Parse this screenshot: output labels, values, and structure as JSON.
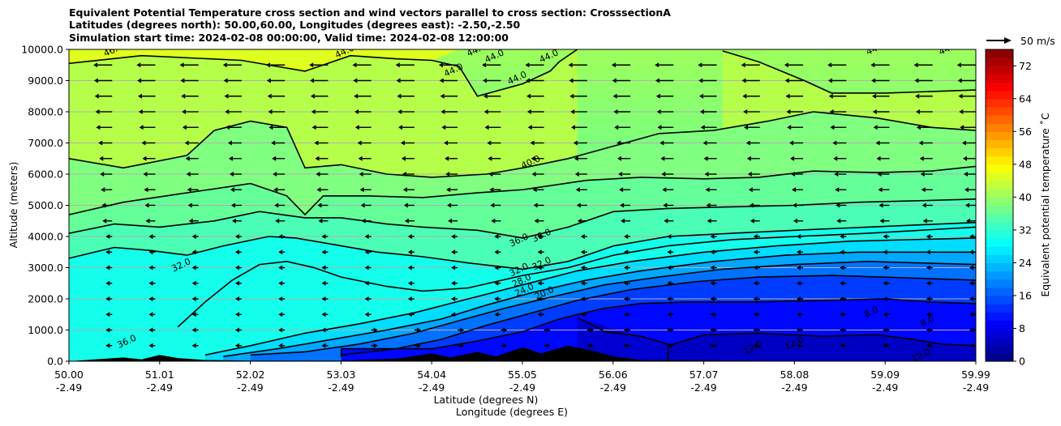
{
  "chart_data": {
    "type": "heatmap",
    "title_lines": [
      "Equivalent Potential Temperature cross section and wind vectors parallel to cross section: CrosssectionA",
      "Latitudes (degrees north): 50.00,60.00, Longitudes (degrees east): -2.50,-2.50",
      "Simulation start time: 2024-02-08 00:00:00, Valid time: 2024-02-08 12:00:00"
    ],
    "ylabel": "Altitude (meters)",
    "xlabel_lines": [
      "Latitude (degrees N)",
      "Longitude (degrees E)"
    ],
    "xlim": [
      50.0,
      59.99
    ],
    "ylim": [
      0,
      10000
    ],
    "x_ticks": [
      {
        "lat": "50.00",
        "lon": "-2.49"
      },
      {
        "lat": "51.01",
        "lon": "-2.49"
      },
      {
        "lat": "52.02",
        "lon": "-2.49"
      },
      {
        "lat": "53.03",
        "lon": "-2.49"
      },
      {
        "lat": "54.04",
        "lon": "-2.49"
      },
      {
        "lat": "55.05",
        "lon": "-2.49"
      },
      {
        "lat": "56.06",
        "lon": "-2.49"
      },
      {
        "lat": "57.07",
        "lon": "-2.49"
      },
      {
        "lat": "58.08",
        "lon": "-2.49"
      },
      {
        "lat": "59.09",
        "lon": "-2.49"
      },
      {
        "lat": "59.99",
        "lon": "-2.49"
      }
    ],
    "y_ticks": [
      "0.0",
      "1000.0",
      "2000.0",
      "3000.0",
      "4000.0",
      "5000.0",
      "6000.0",
      "7000.0",
      "8000.0",
      "9000.0",
      "10000.0"
    ],
    "y_tick_values": [
      0,
      1000,
      2000,
      3000,
      4000,
      5000,
      6000,
      7000,
      8000,
      9000,
      10000
    ],
    "grid": "horizontal",
    "colorbar": {
      "label": "Equivalent potential temperature ˚C",
      "range": [
        0,
        76
      ],
      "ticks": [
        "0",
        "8",
        "16",
        "24",
        "32",
        "40",
        "48",
        "56",
        "64",
        "72"
      ],
      "tick_values": [
        0,
        8,
        16,
        24,
        32,
        40,
        48,
        56,
        64,
        72
      ],
      "colormap": "jet"
    },
    "quiver_key": {
      "label": "50 m/s"
    },
    "contour_labels": [
      {
        "text": "46.0",
        "lat": 50.5,
        "alt": 9900
      },
      {
        "text": "44.0",
        "lat": 53.05,
        "alt": 9850
      },
      {
        "text": "44.0",
        "lat": 54.25,
        "alt": 9250
      },
      {
        "text": "44.0",
        "lat": 54.5,
        "alt": 9900
      },
      {
        "text": "44.0",
        "lat": 54.7,
        "alt": 9700
      },
      {
        "text": "44.0",
        "lat": 54.95,
        "alt": 9000
      },
      {
        "text": "44.0",
        "lat": 55.3,
        "alt": 9700
      },
      {
        "text": "44.0",
        "lat": 58.9,
        "alt": 9950
      },
      {
        "text": "44.0",
        "lat": 59.7,
        "alt": 9950
      },
      {
        "text": "40.0",
        "lat": 55.1,
        "alt": 6300
      },
      {
        "text": "36.0",
        "lat": 54.97,
        "alt": 3800
      },
      {
        "text": "36.0",
        "lat": 55.22,
        "alt": 3950
      },
      {
        "text": "32.0",
        "lat": 54.97,
        "alt": 2850
      },
      {
        "text": "32.0",
        "lat": 55.22,
        "alt": 3050
      },
      {
        "text": "28.0",
        "lat": 55.0,
        "alt": 2500
      },
      {
        "text": "24.0",
        "lat": 55.03,
        "alt": 2200
      },
      {
        "text": "20.0",
        "lat": 55.25,
        "alt": 2100
      },
      {
        "text": "32.0",
        "lat": 51.25,
        "alt": 3000
      },
      {
        "text": "36.0",
        "lat": 50.65,
        "alt": 550
      },
      {
        "text": "8.0",
        "lat": 58.85,
        "alt": 1500
      },
      {
        "text": "8.0",
        "lat": 59.47,
        "alt": 1200
      },
      {
        "text": "12.0",
        "lat": 57.55,
        "alt": 350
      },
      {
        "text": "12.0",
        "lat": 58.0,
        "alt": 500
      },
      {
        "text": "12.0",
        "lat": 59.4,
        "alt": 100
      }
    ],
    "contour_levels": [
      {
        "level": 44,
        "points": [
          [
            50.0,
            9550
          ],
          [
            50.8,
            9800
          ],
          [
            51.9,
            9650
          ],
          [
            52.6,
            9300
          ],
          [
            53.1,
            9800
          ],
          [
            53.6,
            9700
          ],
          [
            54.0,
            9650
          ],
          [
            54.3,
            9450
          ],
          [
            54.5,
            8500
          ],
          [
            54.75,
            8700
          ],
          [
            55.0,
            8900
          ],
          [
            55.3,
            9300
          ],
          [
            55.4,
            9600
          ],
          [
            55.6,
            10000
          ]
        ]
      },
      {
        "level": 44,
        "points": [
          [
            57.2,
            9950
          ],
          [
            57.6,
            9600
          ],
          [
            58.1,
            9000
          ],
          [
            58.4,
            8600
          ],
          [
            59.0,
            8600
          ],
          [
            59.99,
            8700
          ]
        ]
      },
      {
        "level": 40,
        "points": [
          [
            50.0,
            6500
          ],
          [
            50.6,
            6200
          ],
          [
            51.3,
            6600
          ],
          [
            51.6,
            7400
          ],
          [
            52.0,
            7700
          ],
          [
            52.4,
            7500
          ],
          [
            52.6,
            6200
          ],
          [
            53.0,
            6300
          ],
          [
            53.5,
            6000
          ],
          [
            54.0,
            5900
          ],
          [
            54.6,
            6000
          ],
          [
            55.0,
            6200
          ],
          [
            55.5,
            6500
          ],
          [
            56.0,
            6900
          ],
          [
            56.5,
            7300
          ],
          [
            57.1,
            7400
          ],
          [
            57.7,
            7700
          ],
          [
            58.2,
            8000
          ],
          [
            58.9,
            7800
          ],
          [
            59.5,
            7500
          ],
          [
            59.99,
            7400
          ]
        ]
      },
      {
        "level": 38,
        "points": [
          [
            50.0,
            4700
          ],
          [
            50.6,
            5100
          ],
          [
            51.3,
            5400
          ],
          [
            52.0,
            5700
          ],
          [
            52.4,
            5300
          ],
          [
            52.6,
            4700
          ],
          [
            52.8,
            5300
          ],
          [
            53.3,
            5300
          ],
          [
            53.9,
            5250
          ],
          [
            54.5,
            5400
          ],
          [
            55.0,
            5500
          ],
          [
            55.7,
            5800
          ],
          [
            56.3,
            5900
          ],
          [
            57.0,
            5850
          ],
          [
            57.6,
            5900
          ],
          [
            58.2,
            6100
          ],
          [
            58.9,
            6050
          ],
          [
            59.5,
            6100
          ],
          [
            59.99,
            6250
          ]
        ]
      },
      {
        "level": 36,
        "points": [
          [
            50.0,
            4100
          ],
          [
            50.5,
            4400
          ],
          [
            51.0,
            4300
          ],
          [
            51.6,
            4500
          ],
          [
            52.1,
            4800
          ],
          [
            52.6,
            4600
          ],
          [
            53.0,
            4600
          ],
          [
            53.5,
            4400
          ],
          [
            53.9,
            4300
          ],
          [
            54.5,
            4200
          ],
          [
            55.0,
            3950
          ],
          [
            55.5,
            4300
          ],
          [
            56.0,
            4800
          ],
          [
            56.6,
            4900
          ],
          [
            57.3,
            4950
          ],
          [
            58.0,
            5000
          ],
          [
            58.7,
            5100
          ],
          [
            59.4,
            5150
          ],
          [
            59.99,
            5200
          ]
        ]
      },
      {
        "level": 32,
        "points": [
          [
            50.0,
            3300
          ],
          [
            50.5,
            3650
          ],
          [
            50.9,
            3550
          ],
          [
            51.3,
            3400
          ],
          [
            51.7,
            3700
          ],
          [
            52.2,
            4000
          ],
          [
            52.5,
            3950
          ],
          [
            53.0,
            3700
          ],
          [
            53.4,
            3500
          ],
          [
            53.9,
            3350
          ],
          [
            54.4,
            3150
          ],
          [
            55.0,
            2950
          ],
          [
            55.5,
            3200
          ],
          [
            56.0,
            3700
          ],
          [
            56.6,
            4000
          ],
          [
            57.3,
            4100
          ],
          [
            58.0,
            4200
          ],
          [
            58.8,
            4300
          ],
          [
            59.99,
            4450
          ]
        ]
      },
      {
        "level": 32,
        "points": [
          [
            51.2,
            1100
          ],
          [
            51.5,
            1900
          ],
          [
            51.8,
            2600
          ],
          [
            52.1,
            3100
          ],
          [
            52.4,
            3200
          ],
          [
            52.7,
            3000
          ],
          [
            53.0,
            2700
          ],
          [
            53.5,
            2400
          ],
          [
            53.9,
            2250
          ],
          [
            54.4,
            2350
          ],
          [
            55.0,
            2750
          ],
          [
            55.5,
            3000
          ],
          [
            56.0,
            3400
          ],
          [
            56.6,
            3700
          ],
          [
            57.3,
            3900
          ],
          [
            58.0,
            4000
          ],
          [
            58.8,
            4100
          ],
          [
            59.99,
            4300
          ]
        ]
      },
      {
        "level": 28,
        "points": [
          [
            51.5,
            200
          ],
          [
            52.0,
            500
          ],
          [
            52.6,
            900
          ],
          [
            53.2,
            1200
          ],
          [
            53.8,
            1550
          ],
          [
            54.4,
            2000
          ],
          [
            55.0,
            2450
          ],
          [
            55.6,
            2900
          ],
          [
            56.2,
            3200
          ],
          [
            57.0,
            3500
          ],
          [
            57.8,
            3700
          ],
          [
            58.6,
            3850
          ],
          [
            59.99,
            3950
          ]
        ]
      },
      {
        "level": 24,
        "points": [
          [
            51.7,
            150
          ],
          [
            52.3,
            400
          ],
          [
            52.9,
            700
          ],
          [
            53.5,
            1000
          ],
          [
            54.1,
            1350
          ],
          [
            54.6,
            1800
          ],
          [
            55.1,
            2200
          ],
          [
            55.7,
            2600
          ],
          [
            56.3,
            2900
          ],
          [
            57.1,
            3200
          ],
          [
            57.9,
            3400
          ],
          [
            58.7,
            3500
          ],
          [
            59.99,
            3500
          ]
        ]
      },
      {
        "level": 20,
        "points": [
          [
            52.0,
            200
          ],
          [
            52.6,
            300
          ],
          [
            53.2,
            550
          ],
          [
            53.8,
            900
          ],
          [
            54.3,
            1300
          ],
          [
            54.8,
            1700
          ],
          [
            55.3,
            2050
          ],
          [
            55.9,
            2450
          ],
          [
            56.5,
            2700
          ],
          [
            57.2,
            2950
          ],
          [
            58.0,
            3100
          ],
          [
            58.8,
            3200
          ],
          [
            59.99,
            3100
          ]
        ]
      },
      {
        "level": 16,
        "points": [
          [
            53.0,
            200
          ],
          [
            53.6,
            400
          ],
          [
            54.1,
            700
          ],
          [
            54.6,
            1150
          ],
          [
            55.1,
            1550
          ],
          [
            55.6,
            1950
          ],
          [
            56.2,
            2300
          ],
          [
            56.9,
            2550
          ],
          [
            57.6,
            2700
          ],
          [
            58.4,
            2750
          ],
          [
            59.99,
            2600
          ]
        ]
      },
      {
        "level": 12,
        "points": [
          [
            53.0,
            120
          ],
          [
            53.0,
            400
          ],
          [
            54.0,
            400
          ],
          [
            54.5,
            650
          ],
          [
            55.0,
            950
          ],
          [
            55.4,
            1350
          ],
          [
            55.6,
            1500
          ],
          [
            55.9,
            1700
          ],
          [
            56.3,
            1850
          ],
          [
            56.8,
            1900
          ],
          [
            57.5,
            1900
          ],
          [
            58.3,
            1950
          ],
          [
            59.0,
            2000
          ],
          [
            59.5,
            1900
          ],
          [
            59.99,
            1850
          ]
        ]
      },
      {
        "level": 8,
        "points": [
          [
            55.6,
            1400
          ],
          [
            55.9,
            950
          ],
          [
            56.3,
            800
          ],
          [
            56.6,
            550
          ],
          [
            56.6,
            0
          ]
        ]
      },
      {
        "level": 8,
        "points": [
          [
            56.6,
            0
          ],
          [
            56.6,
            500
          ],
          [
            57.0,
            850
          ],
          [
            57.6,
            900
          ],
          [
            58.3,
            800
          ],
          [
            58.9,
            850
          ],
          [
            59.3,
            700
          ],
          [
            59.6,
            550
          ],
          [
            59.99,
            500
          ]
        ]
      }
    ],
    "wind_vectors": "arrows mostly directed toward lower latitude (southward), strongest aloft (~20-30 m/s above 7000 m), weak near the surface with some northward arrows below 1500 m"
  }
}
